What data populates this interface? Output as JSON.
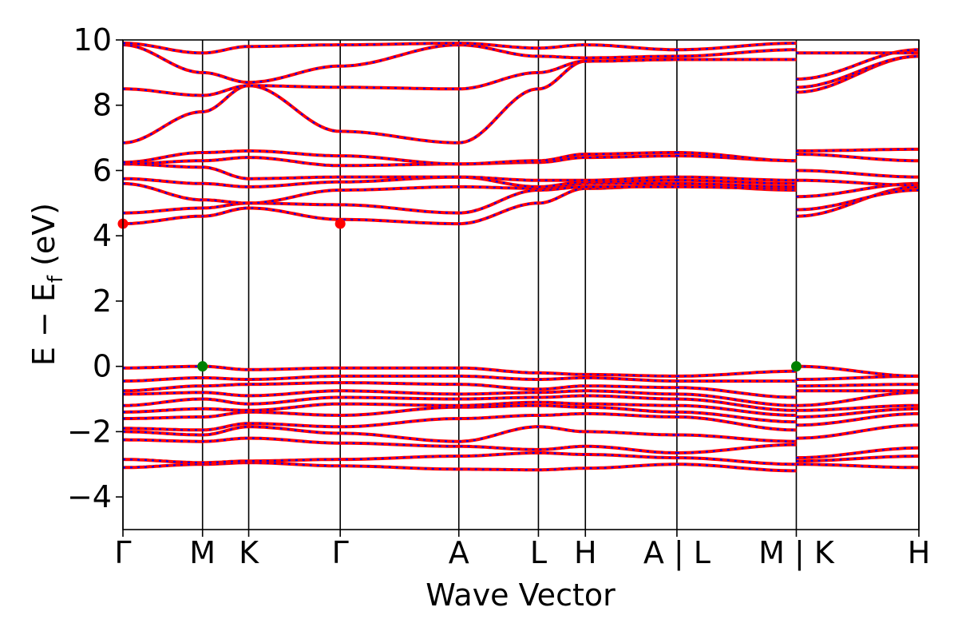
{
  "chart_data": {
    "type": "line",
    "title": "",
    "xlabel": "Wave Vector",
    "ylabel": "E − E_f (eV)",
    "ylabel_main": "E − E",
    "ylabel_sub": "f",
    "ylabel_unit": " (eV)",
    "ylim": [
      -5,
      10
    ],
    "yticks": [
      -4,
      -2,
      0,
      2,
      4,
      6,
      8,
      10
    ],
    "ytick_labels": [
      "−4",
      "−2",
      "0",
      "2",
      "4",
      "6",
      "8",
      "10"
    ],
    "xlim": [
      0,
      10
    ],
    "kpoints": [
      {
        "x": 0.0,
        "label": "Γ"
      },
      {
        "x": 1.0,
        "label": "M"
      },
      {
        "x": 1.58,
        "label": "K"
      },
      {
        "x": 2.73,
        "label": "Γ"
      },
      {
        "x": 4.22,
        "label": "A"
      },
      {
        "x": 5.22,
        "label": "L"
      },
      {
        "x": 5.81,
        "label": "H"
      },
      {
        "x": 6.96,
        "label": "A | L"
      },
      {
        "x": 8.46,
        "label": "M | K"
      },
      {
        "x": 10.0,
        "label": "H"
      }
    ],
    "grid": false,
    "legend": "none",
    "colors": {
      "spin_up": "#ff0000",
      "spin_down": "#0000ff",
      "cbm": "#ff0000",
      "vbm": "#008000",
      "axis": "#000000"
    },
    "extrema": [
      {
        "name": "CBM",
        "x": 0.0,
        "y": 4.37,
        "color": "#ff0000"
      },
      {
        "name": "CBM",
        "x": 2.73,
        "y": 4.37,
        "color": "#ff0000"
      },
      {
        "name": "VBM",
        "x": 1.0,
        "y": 0.0,
        "color": "#008000"
      },
      {
        "name": "VBM",
        "x": 8.46,
        "y": 0.0,
        "color": "#008000"
      }
    ],
    "bands": [
      [
        -3.1,
        -3.0,
        -2.95,
        -3.05,
        -3.15,
        -3.17,
        -3.12,
        -3.0,
        -3.2,
        -3.0,
        -3.1
      ],
      [
        -2.85,
        -2.95,
        -2.9,
        -2.85,
        -2.75,
        -2.65,
        -2.7,
        -2.8,
        -3.0,
        -2.9,
        -2.75
      ],
      [
        -2.25,
        -2.3,
        -2.2,
        -2.35,
        -2.45,
        -2.55,
        -2.45,
        -2.65,
        -2.4,
        -2.8,
        -2.5
      ],
      [
        -2.0,
        -2.1,
        -1.85,
        -2.05,
        -2.3,
        -1.85,
        -2.0,
        -2.1,
        -2.3,
        -2.2,
        -1.8
      ],
      [
        -1.9,
        -1.95,
        -1.75,
        -1.85,
        -1.6,
        -1.5,
        -1.45,
        -1.55,
        -1.95,
        -1.8,
        -1.45
      ],
      [
        -1.6,
        -1.55,
        -1.4,
        -1.5,
        -1.25,
        -1.2,
        -1.25,
        -1.4,
        -1.7,
        -1.55,
        -1.3
      ],
      [
        -1.4,
        -1.3,
        -1.35,
        -1.15,
        -1.2,
        -1.1,
        -1.15,
        -1.2,
        -1.5,
        -1.35,
        -1.2
      ],
      [
        -1.2,
        -1.0,
        -1.15,
        -0.95,
        -1.0,
        -0.95,
        -0.9,
        -1.0,
        -1.35,
        -1.2,
        -0.8
      ],
      [
        -0.85,
        -0.8,
        -0.9,
        -0.75,
        -0.85,
        -0.8,
        -0.75,
        -0.85,
        -1.2,
        -0.75,
        -0.75
      ],
      [
        -0.75,
        -0.6,
        -0.55,
        -0.5,
        -0.55,
        -0.7,
        -0.6,
        -0.65,
        -0.95,
        -0.6,
        -0.55
      ],
      [
        -0.45,
        -0.35,
        -0.4,
        -0.3,
        -0.3,
        -0.4,
        -0.35,
        -0.45,
        -0.45,
        -0.4,
        -0.3
      ],
      [
        -0.05,
        0.0,
        -0.1,
        -0.05,
        -0.05,
        -0.2,
        -0.25,
        -0.3,
        -0.15,
        0.0,
        -0.3
      ],
      [
        4.37,
        4.6,
        4.85,
        4.5,
        4.37,
        5.0,
        5.45,
        5.55,
        5.4,
        4.6,
        5.5
      ],
      [
        4.7,
        4.85,
        5.0,
        4.95,
        4.7,
        5.4,
        5.5,
        5.5,
        5.45,
        4.8,
        5.4
      ],
      [
        5.6,
        5.1,
        5.0,
        5.4,
        5.5,
        5.45,
        5.6,
        5.6,
        5.5,
        5.2,
        5.6
      ],
      [
        5.75,
        5.6,
        5.5,
        5.65,
        5.8,
        5.5,
        5.65,
        5.7,
        5.6,
        5.7,
        5.55
      ],
      [
        6.2,
        6.1,
        5.75,
        5.8,
        5.8,
        5.7,
        5.7,
        5.8,
        5.7,
        6.0,
        5.8
      ],
      [
        6.2,
        6.3,
        6.4,
        6.15,
        6.2,
        6.25,
        6.4,
        6.45,
        6.3,
        6.5,
        6.3
      ],
      [
        6.25,
        6.55,
        6.6,
        6.45,
        6.2,
        6.3,
        6.5,
        6.55,
        6.3,
        6.6,
        6.65
      ],
      [
        6.85,
        7.8,
        8.6,
        7.2,
        6.85,
        8.5,
        9.35,
        9.4,
        9.4,
        8.4,
        9.5
      ],
      [
        8.5,
        8.3,
        8.6,
        8.55,
        8.5,
        9.0,
        9.35,
        9.4,
        9.4,
        8.55,
        9.5
      ],
      [
        9.85,
        9.0,
        8.7,
        9.2,
        9.85,
        9.5,
        9.45,
        9.5,
        9.7,
        8.8,
        9.7
      ],
      [
        9.9,
        9.6,
        9.8,
        9.85,
        9.9,
        9.75,
        9.85,
        9.7,
        9.9,
        9.6,
        9.6
      ]
    ]
  }
}
